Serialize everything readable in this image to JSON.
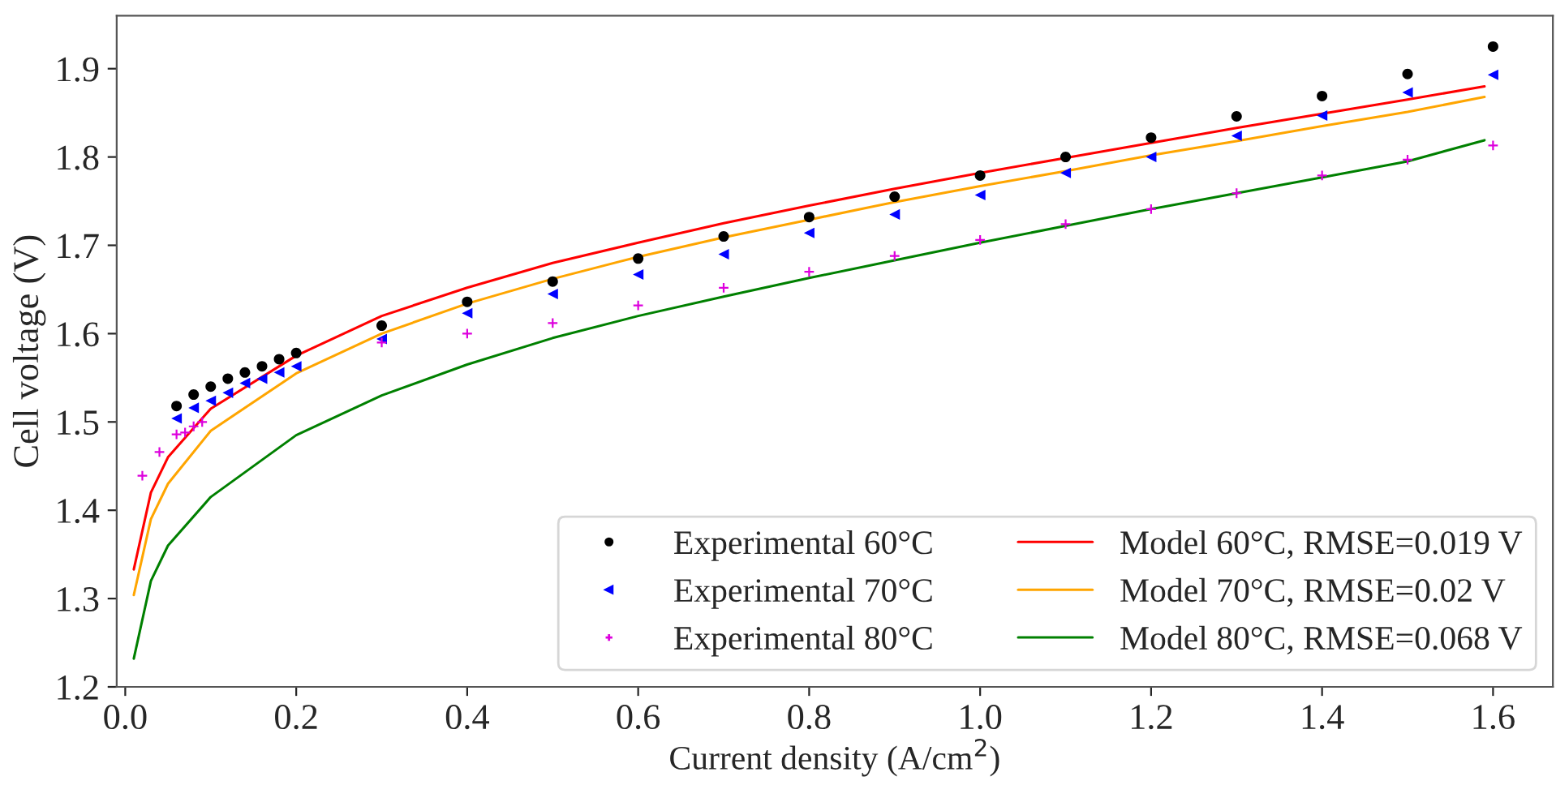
{
  "chart_data": {
    "type": "scatter",
    "xlabel": "Current density (A/cm$^{2}$)",
    "ylabel": "Cell voltage (V)",
    "xlim": [
      -0.01,
      1.67
    ],
    "ylim": [
      1.2,
      1.96
    ],
    "xticks": [
      {
        "value": 0,
        "label": "0.0"
      },
      0.2,
      0.4,
      0.6,
      0.8,
      {
        "value": 1,
        "label": "1.0"
      },
      1.2,
      1.4,
      1.6
    ],
    "yticks": [
      1.2,
      1.3,
      1.4,
      1.5,
      1.6,
      1.7,
      1.8,
      1.9
    ],
    "grid": false,
    "legend": "bottom right",
    "series": [
      {
        "name": "Experimental 60°C",
        "marker": "circle",
        "color": "#000000",
        "x": [
          0.06,
          0.08,
          0.1,
          0.12,
          0.14,
          0.16,
          0.18,
          0.2,
          0.3,
          0.4,
          0.5,
          0.6,
          0.7,
          0.8,
          0.9,
          1.0,
          1.1,
          1.2,
          1.3,
          1.4,
          1.5,
          1.6
        ],
        "values": [
          1.518,
          1.531,
          1.54,
          1.549,
          1.556,
          1.563,
          1.571,
          1.578,
          1.609,
          1.636,
          1.659,
          1.685,
          1.71,
          1.732,
          1.755,
          1.779,
          1.8,
          1.822,
          1.846,
          1.869,
          1.894,
          1.925
        ]
      },
      {
        "name": "Experimental 70°C",
        "marker": "triangle",
        "color": "#0000ff",
        "x": [
          0.06,
          0.08,
          0.1,
          0.12,
          0.14,
          0.16,
          0.18,
          0.2,
          0.3,
          0.4,
          0.5,
          0.6,
          0.7,
          0.8,
          0.9,
          1.0,
          1.1,
          1.2,
          1.3,
          1.4,
          1.5,
          1.6
        ],
        "values": [
          1.504,
          1.516,
          1.524,
          1.533,
          1.544,
          1.549,
          1.556,
          1.563,
          1.594,
          1.623,
          1.645,
          1.667,
          1.69,
          1.714,
          1.735,
          1.757,
          1.782,
          1.8,
          1.824,
          1.847,
          1.873,
          1.893
        ]
      },
      {
        "name": "Experimental 80°C",
        "marker": "cross",
        "color": "#dd00dd",
        "x": [
          0.02,
          0.04,
          0.06,
          0.07,
          0.08,
          0.09,
          0.3,
          0.4,
          0.5,
          0.6,
          0.7,
          0.8,
          0.9,
          1.0,
          1.1,
          1.2,
          1.3,
          1.4,
          1.5,
          1.6
        ],
        "values": [
          1.439,
          1.466,
          1.486,
          1.488,
          1.495,
          1.5,
          1.59,
          1.6,
          1.612,
          1.632,
          1.652,
          1.67,
          1.688,
          1.706,
          1.724,
          1.741,
          1.759,
          1.779,
          1.797,
          1.813
        ]
      },
      {
        "name": "Model 60°C, RMSE=0.019 V",
        "type": "line",
        "marker": "none",
        "color": "#ff0000",
        "x": [
          0.01,
          0.03,
          0.05,
          0.1,
          0.2,
          0.3,
          0.4,
          0.5,
          0.6,
          0.7,
          0.8,
          0.9,
          1.0,
          1.1,
          1.2,
          1.3,
          1.4,
          1.5,
          1.59
        ],
        "values": [
          1.333,
          1.42,
          1.46,
          1.515,
          1.575,
          1.62,
          1.652,
          1.68,
          1.703,
          1.725,
          1.745,
          1.764,
          1.782,
          1.799,
          1.816,
          1.833,
          1.849,
          1.865,
          1.88
        ]
      },
      {
        "name": "Model 70°C, RMSE=0.02 V",
        "type": "line",
        "marker": "none",
        "color": "#ffa500",
        "x": [
          0.01,
          0.03,
          0.05,
          0.1,
          0.2,
          0.3,
          0.4,
          0.5,
          0.6,
          0.7,
          0.8,
          0.9,
          1.0,
          1.1,
          1.2,
          1.3,
          1.4,
          1.5,
          1.59
        ],
        "values": [
          1.304,
          1.39,
          1.43,
          1.49,
          1.555,
          1.6,
          1.634,
          1.662,
          1.687,
          1.709,
          1.729,
          1.749,
          1.767,
          1.784,
          1.802,
          1.818,
          1.835,
          1.851,
          1.868
        ]
      },
      {
        "name": "Model 80°C, RMSE=0.068 V",
        "type": "line",
        "marker": "none",
        "color": "#008000",
        "x": [
          0.01,
          0.03,
          0.05,
          0.1,
          0.2,
          0.3,
          0.4,
          0.5,
          0.6,
          0.7,
          0.8,
          0.9,
          1.0,
          1.1,
          1.2,
          1.3,
          1.4,
          1.5,
          1.59
        ],
        "values": [
          1.232,
          1.32,
          1.36,
          1.415,
          1.485,
          1.53,
          1.565,
          1.595,
          1.62,
          1.642,
          1.663,
          1.683,
          1.703,
          1.722,
          1.741,
          1.759,
          1.777,
          1.795,
          1.819
        ]
      }
    ]
  }
}
